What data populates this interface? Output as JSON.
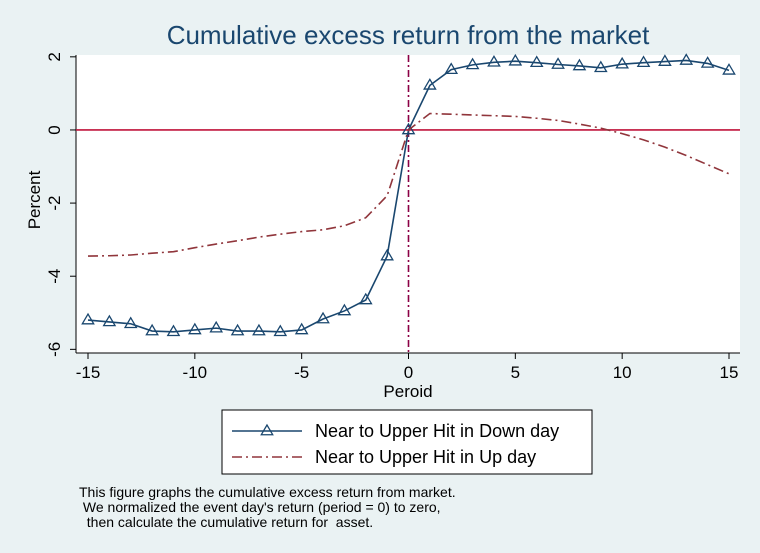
{
  "chart_data": {
    "type": "line",
    "title": "Cumulative excess return from the market",
    "xlabel": "Peroid",
    "ylabel": "Percent",
    "xlim": [
      -15,
      15
    ],
    "ylim": [
      -6.1,
      2.05
    ],
    "xticks": [
      -15,
      -10,
      -5,
      0,
      5,
      10,
      15
    ],
    "yticks": [
      -6,
      -4,
      -2,
      0,
      2
    ],
    "grid": false,
    "reference_lines": {
      "horizontal_y": 0,
      "horizontal_color": "#c0143c",
      "vertical_x": 0,
      "vertical_color": "#8b0045"
    },
    "x": [
      -15,
      -14,
      -13,
      -12,
      -11,
      -10,
      -9,
      -8,
      -7,
      -6,
      -5,
      -4,
      -3,
      -2,
      -1,
      0,
      1,
      2,
      3,
      4,
      5,
      6,
      7,
      8,
      9,
      10,
      11,
      12,
      13,
      14,
      15
    ],
    "series": [
      {
        "name": "Near to Upper Hit in Down day",
        "color": "#1a476f",
        "marker": "triangle",
        "line_style": "solid",
        "values": [
          -5.2,
          -5.25,
          -5.3,
          -5.5,
          -5.52,
          -5.47,
          -5.42,
          -5.5,
          -5.5,
          -5.52,
          -5.47,
          -5.17,
          -4.95,
          -4.65,
          -3.45,
          0.0,
          1.22,
          1.65,
          1.78,
          1.85,
          1.88,
          1.84,
          1.79,
          1.75,
          1.7,
          1.8,
          1.84,
          1.87,
          1.9,
          1.82,
          1.63
        ]
      },
      {
        "name": "Near to Upper Hit in Up day",
        "color": "#90353b",
        "marker": "none",
        "line_style": "dash-dot",
        "values": [
          -3.45,
          -3.44,
          -3.42,
          -3.37,
          -3.33,
          -3.22,
          -3.12,
          -3.03,
          -2.93,
          -2.85,
          -2.78,
          -2.73,
          -2.62,
          -2.4,
          -1.8,
          0.0,
          0.45,
          0.43,
          0.41,
          0.39,
          0.37,
          0.32,
          0.26,
          0.16,
          0.05,
          -0.1,
          -0.27,
          -0.47,
          -0.7,
          -0.95,
          -1.2
        ]
      }
    ],
    "legend_position": "bottom-center",
    "note": [
      "This figure graphs the cumulative excess return from market.",
      " We normalized the event day's return (period = 0) to zero,",
      "  then calculate the cumulative return for  asset."
    ]
  },
  "colors": {
    "background": "#eaf2f3",
    "plot_background": "#ffffff",
    "title": "#1a476f"
  }
}
